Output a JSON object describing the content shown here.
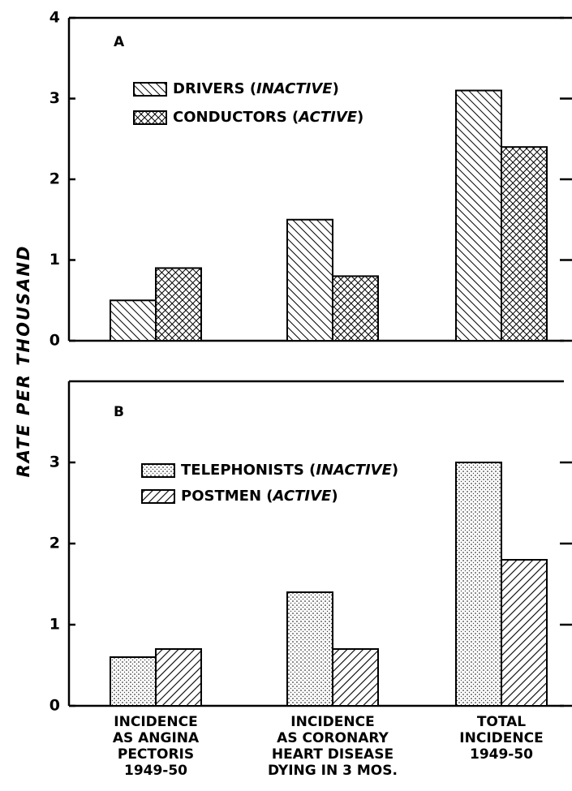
{
  "ylabel": "RATE PER THOUSAND",
  "chart_data": [
    {
      "type": "bar",
      "label": "A",
      "categories": [
        null,
        null,
        null
      ],
      "series": [
        {
          "name": "DRIVERS (INACTIVE)",
          "color": "#000000",
          "pattern": "hatch-back",
          "values": [
            0.5,
            1.5,
            3.1
          ]
        },
        {
          "name": "CONDUCTORS (ACTIVE)",
          "color": "#000000",
          "pattern": "crosshatch",
          "values": [
            0.9,
            0.8,
            2.4
          ]
        }
      ],
      "ylim": [
        0,
        4
      ],
      "yticks": [
        0,
        1,
        2,
        3,
        4
      ]
    },
    {
      "type": "bar",
      "label": "B",
      "categories": [
        "INCIDENCE\nAS ANGINA\nPECTORIS\n1949-50",
        "INCIDENCE\nAS CORONARY\nHEART DISEASE\nDYING IN 3 MOS.",
        "TOTAL\nINCIDENCE\n1949-50"
      ],
      "series": [
        {
          "name": "TELEPHONISTS (INACTIVE)",
          "color": "#000000",
          "pattern": "dots",
          "values": [
            0.6,
            1.4,
            3.0
          ]
        },
        {
          "name": "POSTMEN (ACTIVE)",
          "color": "#000000",
          "pattern": "hatch-fwd",
          "values": [
            0.7,
            0.7,
            1.8
          ]
        }
      ],
      "ylim": [
        0,
        4
      ],
      "yticks": [
        0,
        1,
        2,
        3
      ]
    }
  ]
}
